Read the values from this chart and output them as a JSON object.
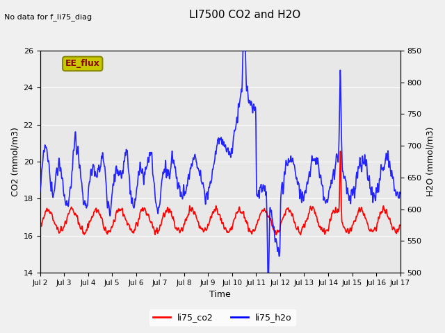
{
  "title": "LI7500 CO2 and H2O",
  "top_left_text": "No data for f_li75_diag",
  "xlabel": "Time",
  "ylabel_left": "CO2 (mmol/m3)",
  "ylabel_right": "H2O (mmol/m3)",
  "ylim_left": [
    14,
    26
  ],
  "ylim_right": [
    500,
    850
  ],
  "yticks_left": [
    14,
    16,
    18,
    20,
    22,
    24,
    26
  ],
  "yticks_right": [
    500,
    550,
    600,
    650,
    700,
    750,
    800,
    850
  ],
  "xtick_labels": [
    "Jul 2",
    "Jul 3",
    "Jul 4",
    "Jul 5",
    "Jul 6",
    "Jul 7",
    "Jul 8",
    "Jul 9",
    "Jul 10",
    "Jul 11",
    "Jul 12",
    "Jul 13",
    "Jul 14",
    "Jul 15",
    "Jul 16",
    "Jul 17"
  ],
  "annotation_box": "EE_flux",
  "annotation_box_color": "#c8c800",
  "annotation_text_color": "#8b0000",
  "legend_entries": [
    "li75_co2",
    "li75_h2o"
  ],
  "legend_colors": [
    "#ff0000",
    "#0000ff"
  ],
  "co2_color": "#ff0000",
  "h2o_color": "#0000ff",
  "background_color": "#f0f0f0",
  "plot_bg_color": "#e8e8e8",
  "grid_color": "#ffffff",
  "linewidth_co2": 1.2,
  "linewidth_h2o": 1.2
}
